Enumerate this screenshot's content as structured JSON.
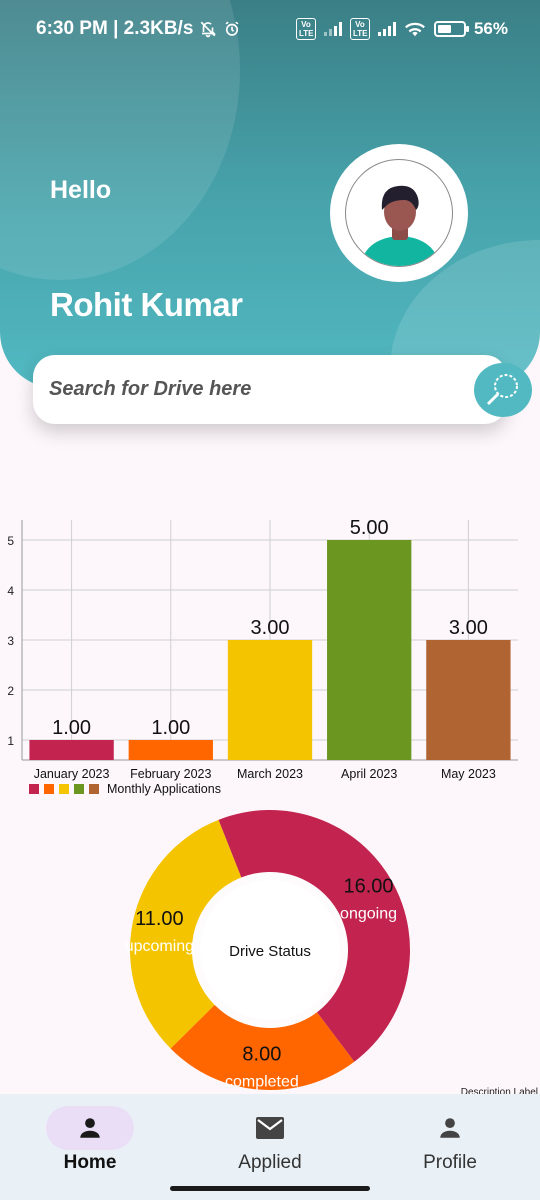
{
  "status_bar": {
    "time_speed": "6:30 PM | 2.3KB/s",
    "volte1": "Vo LTE",
    "volte2": "Vo LTE",
    "battery": "56%",
    "battery_level": 0.56
  },
  "header": {
    "greeting": "Hello",
    "user_name": "Rohit Kumar",
    "avatar_icon": "user-avatar-icon"
  },
  "search": {
    "placeholder": "Search for Drive here",
    "icon": "search-icon"
  },
  "colors": {
    "accent": "#52b9c2",
    "jan": "#c2244f",
    "feb": "#ff6600",
    "mar": "#f5c400",
    "apr": "#6b9720",
    "may": "#b06431"
  },
  "chart_data": [
    {
      "type": "bar",
      "categories": [
        "January 2023",
        "February 2023",
        "March 2023",
        "April 2023",
        "May 2023"
      ],
      "values": [
        1,
        1,
        3,
        5,
        3
      ],
      "value_labels": [
        "1.00",
        "1.00",
        "3.00",
        "5.00",
        "3.00"
      ],
      "colors": [
        "#c2244f",
        "#ff6600",
        "#f5c400",
        "#6b9720",
        "#b06431"
      ],
      "y_ticks": [
        "1",
        "2",
        "3",
        "4",
        "5"
      ],
      "ylim": [
        0.6,
        5.4
      ],
      "grid": true,
      "legend": "bottom-left",
      "legend_label": "Monthly Applications"
    },
    {
      "type": "pie",
      "center_text": "Drive Status",
      "slices": [
        {
          "label": "ongoing",
          "value": 16,
          "value_label": "16.00",
          "color": "#c2244f"
        },
        {
          "label": "completed",
          "value": 8,
          "value_label": "8.00",
          "color": "#ff6600"
        },
        {
          "label": "upcoming",
          "value": 11,
          "value_label": "11.00",
          "color": "#f5c400"
        }
      ],
      "description_label": "Description Label"
    }
  ],
  "bottom_nav": {
    "items": [
      {
        "label": "Home",
        "icon": "person-icon",
        "active": true
      },
      {
        "label": "Applied",
        "icon": "mail-icon",
        "active": false
      },
      {
        "label": "Profile",
        "icon": "person-icon",
        "active": false
      }
    ]
  }
}
